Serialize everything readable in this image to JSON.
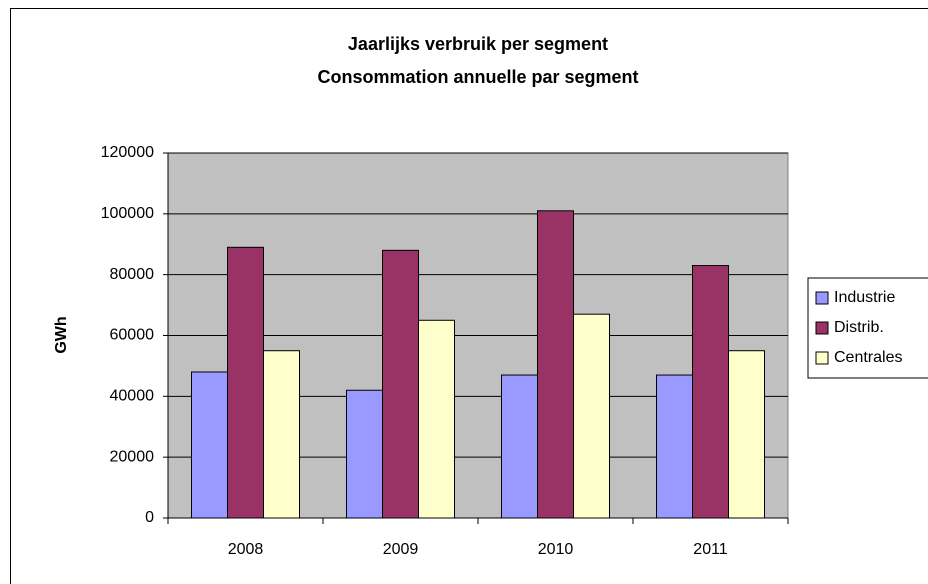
{
  "chart_data": {
    "type": "bar",
    "title": "Jaarlijks verbruik per segment",
    "subtitle": "Consommation annuelle par segment",
    "y_label": "GWh",
    "categories": [
      "2008",
      "2009",
      "2010",
      "2011"
    ],
    "series": [
      {
        "name": "Industrie",
        "color": "#9999ff",
        "values": [
          48000,
          42000,
          47000,
          47000
        ]
      },
      {
        "name": "Distrib.",
        "color": "#993366",
        "values": [
          89000,
          88000,
          101000,
          83000
        ]
      },
      {
        "name": "Centrales",
        "color": "#ffffcc",
        "values": [
          55000,
          65000,
          67000,
          55000
        ]
      }
    ],
    "ylim": [
      0,
      120000
    ],
    "yticks": [
      0,
      20000,
      40000,
      60000,
      80000,
      100000,
      120000
    ],
    "grid": true,
    "legend": "right"
  }
}
